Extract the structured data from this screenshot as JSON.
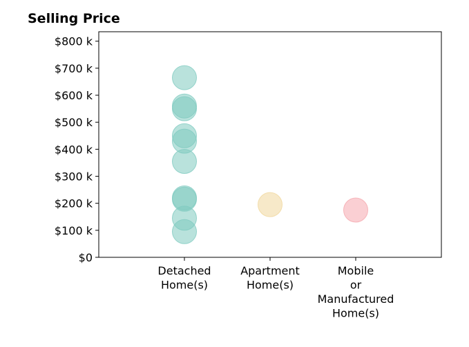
{
  "chart_data": {
    "type": "scatter",
    "title": "Selling Price",
    "categories": [
      [
        "Detached",
        "Home(s)"
      ],
      [
        "Apartment",
        "Home(s)"
      ],
      [
        "Mobile",
        "or",
        "Manufactured",
        "Home(s)"
      ]
    ],
    "y_ticks": [
      0,
      100000,
      200000,
      300000,
      400000,
      500000,
      600000,
      700000,
      800000
    ],
    "y_tick_labels": [
      "$0",
      "$100 k",
      "$200 k",
      "$300 k",
      "$400 k",
      "$500 k",
      "$600 k",
      "$700 k",
      "$800 k"
    ],
    "ylim": [
      0,
      835000
    ],
    "grid": false,
    "series": [
      {
        "category": 0,
        "color": "#7fcbc0",
        "values": [
          665000,
          560000,
          550000,
          450000,
          430000,
          355000,
          220000,
          215000,
          145000,
          95000
        ]
      },
      {
        "category": 1,
        "color": "#f0d79c",
        "values": [
          195000
        ]
      },
      {
        "category": 2,
        "color": "#f5a7ae",
        "values": [
          175000
        ]
      }
    ]
  }
}
